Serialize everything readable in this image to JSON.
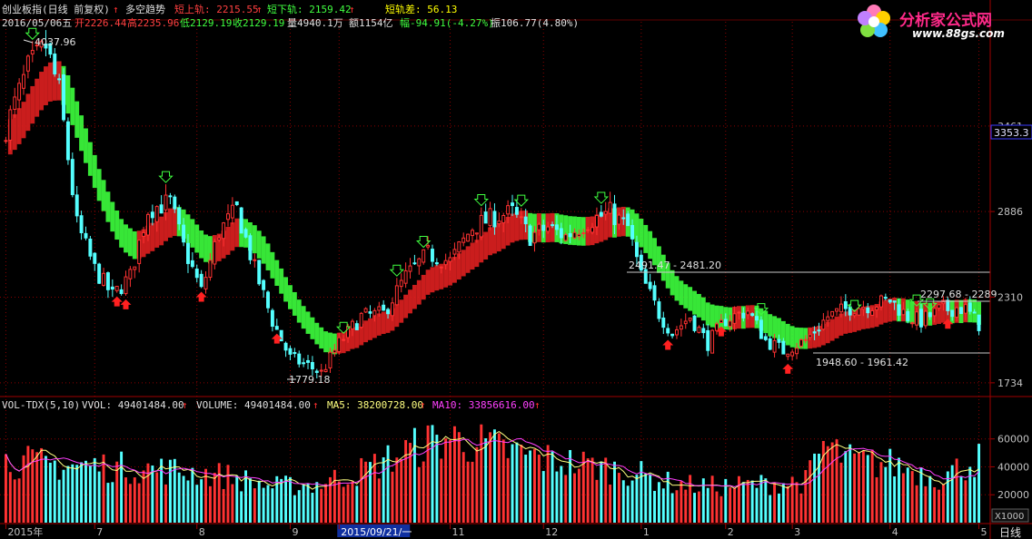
{
  "header": {
    "title": "创业板指(日线 前复权)",
    "indicator_name": "多空趋势",
    "ind_up_label": "短上轨: 2215.55",
    "ind_down_label": "短下轨: 2159.42",
    "ind_diff_label": "短轨差: 56.13",
    "date_label": "2016/05/06五",
    "open_label": "开2226.44",
    "high_label": "高2235.96",
    "low_label": "低2129.19",
    "close_label": "收2129.19",
    "vol_label": "量4940.1万",
    "amount_label": "额1154亿",
    "change_label": "幅-94.91(-4.27%)",
    "amp_label": "振106.77(4.80%)"
  },
  "logo": {
    "text": "分析家公式网",
    "url_text": "www.88gs.com"
  },
  "price_axis": {
    "ticks": [
      {
        "value": 3461,
        "label": "3461"
      },
      {
        "value": 2886,
        "label": "2886"
      },
      {
        "value": 2310,
        "label": "2310"
      },
      {
        "value": 1734,
        "label": "1734"
      }
    ],
    "current_label": "3353.3",
    "current_value": 3353.3
  },
  "annotations": {
    "high_label": "4037.96",
    "low_label": "1779.18",
    "range1_label": "2491.47 - 2481.20",
    "range2_label": "2297.68 - 2289",
    "range3_label": "1948.60 - 1961.42"
  },
  "volume_header": {
    "name": "VOL-TDX(5,10)",
    "vvol_label": "VVOL: 49401484.00",
    "volume_label": "VOLUME: 49401484.00",
    "ma5_label": "MA5: 38200728.00",
    "ma10_label": "MA10: 33856616.00"
  },
  "volume_axis": {
    "ticks": [
      {
        "value": 60000,
        "label": "60000"
      },
      {
        "value": 40000,
        "label": "40000"
      },
      {
        "value": 20000,
        "label": "20000"
      }
    ],
    "unit_label": "X1000"
  },
  "x_axis": {
    "labels": [
      {
        "text": "2015年",
        "index": 0
      },
      {
        "text": "7",
        "index": 20
      },
      {
        "text": "8",
        "index": 43
      },
      {
        "text": "9",
        "index": 64
      },
      {
        "text": "2015/09/21/一",
        "index": 75
      },
      {
        "text": "11",
        "index": 100
      },
      {
        "text": "12",
        "index": 121
      },
      {
        "text": "1",
        "index": 143
      },
      {
        "text": "2",
        "index": 162
      },
      {
        "text": "3",
        "index": 177
      },
      {
        "text": "4",
        "index": 199
      },
      {
        "text": "5",
        "index": 219
      }
    ],
    "period_label": "日线"
  },
  "colors": {
    "up": "#ff3232",
    "down": "#54ffff",
    "band_up": "#e02020",
    "band_down": "#3dff3d",
    "ma5": "#ffff80",
    "ma10": "#ff40ff",
    "grid": "#8a0000",
    "axis_text": "#c0c0c0",
    "header_red": "#ff4040",
    "header_green": "#40ff40",
    "header_yellow": "#ffff00"
  },
  "chart_data": {
    "type": "candlestick",
    "y_range": [
      1660,
      4150
    ],
    "volume_range": [
      0,
      78000
    ],
    "keypoints": [
      [
        0,
        3450
      ],
      [
        5,
        3850
      ],
      [
        9,
        4000
      ],
      [
        12,
        3700
      ],
      [
        16,
        2800
      ],
      [
        20,
        2500
      ],
      [
        24,
        2320
      ],
      [
        28,
        2450
      ],
      [
        32,
        2900
      ],
      [
        37,
        2950
      ],
      [
        40,
        2650
      ],
      [
        44,
        2350
      ],
      [
        48,
        2750
      ],
      [
        52,
        2900
      ],
      [
        56,
        2500
      ],
      [
        60,
        2150
      ],
      [
        64,
        1900
      ],
      [
        68,
        1850
      ],
      [
        71,
        1800
      ],
      [
        75,
        2000
      ],
      [
        80,
        2180
      ],
      [
        85,
        2200
      ],
      [
        90,
        2450
      ],
      [
        95,
        2600
      ],
      [
        100,
        2550
      ],
      [
        105,
        2780
      ],
      [
        110,
        2850
      ],
      [
        114,
        2880
      ],
      [
        118,
        2720
      ],
      [
        122,
        2780
      ],
      [
        126,
        2720
      ],
      [
        131,
        2820
      ],
      [
        136,
        2880
      ],
      [
        140,
        2780
      ],
      [
        143,
        2450
      ],
      [
        147,
        2200
      ],
      [
        150,
        2070
      ],
      [
        154,
        2180
      ],
      [
        158,
        2000
      ],
      [
        162,
        2160
      ],
      [
        167,
        2220
      ],
      [
        171,
        2020
      ],
      [
        175,
        1950
      ],
      [
        180,
        2020
      ],
      [
        185,
        2180
      ],
      [
        190,
        2240
      ],
      [
        195,
        2260
      ],
      [
        199,
        2290
      ],
      [
        203,
        2180
      ],
      [
        206,
        2150
      ],
      [
        210,
        2220
      ],
      [
        214,
        2240
      ],
      [
        216,
        2230
      ],
      [
        219,
        2129
      ]
    ],
    "volume_keypoints": [
      [
        0,
        48000
      ],
      [
        10,
        45000
      ],
      [
        20,
        44000
      ],
      [
        30,
        42000
      ],
      [
        40,
        40000
      ],
      [
        50,
        36000
      ],
      [
        60,
        28000
      ],
      [
        70,
        30000
      ],
      [
        80,
        40000
      ],
      [
        90,
        55000
      ],
      [
        95,
        62000
      ],
      [
        100,
        66000
      ],
      [
        110,
        58000
      ],
      [
        120,
        50000
      ],
      [
        130,
        45000
      ],
      [
        140,
        40000
      ],
      [
        150,
        30000
      ],
      [
        160,
        28000
      ],
      [
        170,
        30000
      ],
      [
        180,
        32000
      ],
      [
        184,
        60000
      ],
      [
        190,
        48000
      ],
      [
        200,
        45000
      ],
      [
        210,
        35000
      ],
      [
        219,
        49401
      ]
    ]
  }
}
